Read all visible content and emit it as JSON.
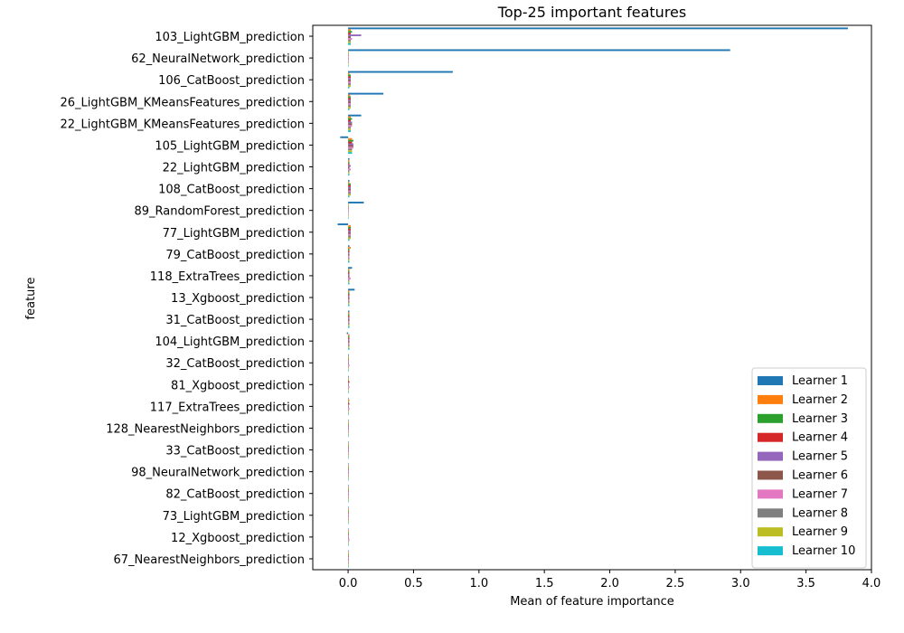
{
  "chart_data": {
    "type": "bar",
    "orientation": "horizontal",
    "title": "Top-25 important features",
    "xlabel": "Mean of feature importance",
    "ylabel": "feature",
    "xlim": [
      -0.27,
      4.0
    ],
    "xticks": [
      0.0,
      0.5,
      1.0,
      1.5,
      2.0,
      2.5,
      3.0,
      3.5,
      4.0
    ],
    "xtick_labels": [
      "0.0",
      "0.5",
      "1.0",
      "1.5",
      "2.0",
      "2.5",
      "3.0",
      "3.5",
      "4.0"
    ],
    "grid": false,
    "legend_position": "bottom-right",
    "categories": [
      "103_LightGBM_prediction",
      "62_NeuralNetwork_prediction",
      "106_CatBoost_prediction",
      "26_LightGBM_KMeansFeatures_prediction",
      "22_LightGBM_KMeansFeatures_prediction",
      "105_LightGBM_prediction",
      "22_LightGBM_prediction",
      "108_CatBoost_prediction",
      "89_RandomForest_prediction",
      "77_LightGBM_prediction",
      "79_CatBoost_prediction",
      "118_ExtraTrees_prediction",
      "13_Xgboost_prediction",
      "31_CatBoost_prediction",
      "104_LightGBM_prediction",
      "32_CatBoost_prediction",
      "81_Xgboost_prediction",
      "117_ExtraTrees_prediction",
      "128_NearestNeighbors_prediction",
      "33_CatBoost_prediction",
      "98_NeuralNetwork_prediction",
      "82_CatBoost_prediction",
      "73_LightGBM_prediction",
      "12_Xgboost_prediction",
      "67_NearestNeighbors_prediction"
    ],
    "series": [
      {
        "name": "Learner 1",
        "color": "#1f77b4",
        "values": [
          3.82,
          2.92,
          0.8,
          0.27,
          0.1,
          -0.06,
          0.01,
          0.01,
          0.12,
          -0.08,
          0.01,
          0.03,
          0.05,
          0.01,
          -0.01,
          0.005,
          0.005,
          0.002,
          0.003,
          0.002,
          0.002,
          0.002,
          0.002,
          0.002,
          0.002
        ]
      },
      {
        "name": "Learner 2",
        "color": "#ff7f0e",
        "values": [
          0.02,
          0.003,
          0.01,
          0.015,
          0.02,
          0.03,
          0.01,
          0.01,
          0.003,
          0.02,
          0.02,
          0.01,
          0.01,
          0.01,
          0.01,
          0.005,
          0.005,
          0.01,
          0.005,
          0.005,
          0.005,
          0.005,
          0.005,
          0.005,
          0.005
        ]
      },
      {
        "name": "Learner 3",
        "color": "#2ca02c",
        "values": [
          0.03,
          0.003,
          0.02,
          0.02,
          0.03,
          0.04,
          0.01,
          0.02,
          0.003,
          0.02,
          0.01,
          0.01,
          0.01,
          0.01,
          0.01,
          0.005,
          0.005,
          0.005,
          0.005,
          0.005,
          0.005,
          0.005,
          0.005,
          0.005,
          0.005
        ]
      },
      {
        "name": "Learner 4",
        "color": "#d62728",
        "values": [
          0.02,
          0.003,
          0.02,
          0.02,
          0.02,
          0.03,
          0.01,
          0.02,
          0.003,
          0.02,
          0.01,
          0.01,
          0.01,
          0.01,
          0.01,
          0.005,
          0.01,
          0.01,
          0.005,
          0.005,
          0.005,
          0.005,
          0.005,
          0.005,
          0.005
        ]
      },
      {
        "name": "Learner 5",
        "color": "#9467bd",
        "values": [
          0.1,
          0.003,
          0.02,
          0.02,
          0.03,
          0.04,
          0.02,
          0.02,
          0.003,
          0.02,
          0.01,
          0.01,
          0.01,
          0.01,
          0.01,
          0.005,
          0.005,
          0.005,
          0.005,
          0.005,
          0.005,
          0.005,
          0.005,
          0.005,
          0.005
        ]
      },
      {
        "name": "Learner 6",
        "color": "#8c564b",
        "values": [
          0.02,
          0.003,
          0.02,
          0.02,
          0.03,
          0.04,
          0.01,
          0.02,
          0.003,
          0.02,
          0.01,
          0.01,
          0.01,
          0.01,
          0.01,
          0.005,
          0.005,
          0.005,
          0.005,
          0.005,
          0.005,
          0.005,
          0.005,
          0.005,
          0.005
        ]
      },
      {
        "name": "Learner 7",
        "color": "#e377c2",
        "values": [
          0.03,
          0.003,
          0.02,
          0.02,
          0.03,
          0.04,
          0.02,
          0.02,
          0.003,
          0.02,
          0.01,
          0.02,
          0.01,
          0.01,
          0.01,
          0.01,
          0.01,
          0.01,
          0.005,
          0.005,
          0.005,
          0.005,
          0.005,
          0.01,
          0.005
        ]
      },
      {
        "name": "Learner 8",
        "color": "#7f7f7f",
        "values": [
          0.02,
          0.003,
          0.02,
          0.02,
          0.02,
          0.03,
          0.01,
          0.02,
          0.003,
          0.02,
          0.01,
          0.01,
          0.01,
          0.01,
          0.01,
          0.005,
          0.005,
          0.005,
          0.005,
          0.005,
          0.005,
          0.005,
          0.005,
          0.005,
          0.005
        ]
      },
      {
        "name": "Learner 9",
        "color": "#bcbd22",
        "values": [
          0.02,
          0.003,
          0.02,
          0.02,
          0.02,
          0.03,
          0.01,
          0.02,
          0.003,
          0.02,
          0.01,
          0.01,
          0.01,
          0.01,
          0.01,
          0.005,
          0.005,
          0.005,
          0.005,
          0.005,
          0.005,
          0.005,
          0.005,
          0.005,
          0.005
        ]
      },
      {
        "name": "Learner 10",
        "color": "#17becf",
        "values": [
          0.02,
          0.003,
          0.01,
          0.01,
          0.02,
          0.03,
          0.01,
          0.01,
          0.003,
          0.01,
          0.01,
          0.01,
          0.01,
          0.01,
          0.01,
          0.005,
          0.005,
          0.005,
          0.005,
          0.005,
          0.005,
          0.005,
          0.005,
          0.005,
          0.005
        ]
      }
    ]
  }
}
